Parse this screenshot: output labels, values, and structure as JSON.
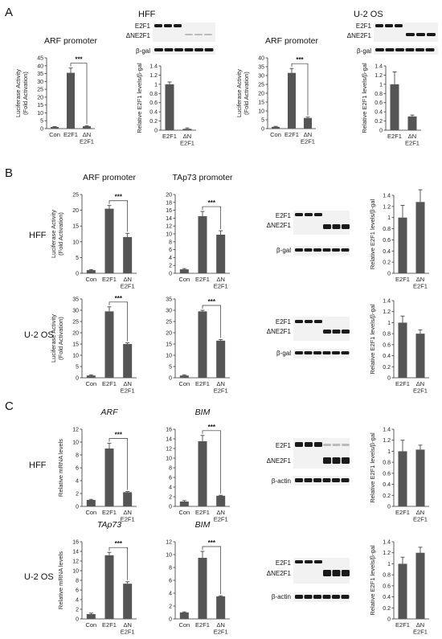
{
  "panels": [
    "A",
    "B",
    "C"
  ],
  "rows": {
    "HFF": "HFF",
    "U2OS": "U-2 OS"
  },
  "blot_labels": {
    "e2f1": "E2F1",
    "dne2f1": "ΔNE2F1",
    "bgal": "β-gal",
    "bactin": "β-actin"
  },
  "significance": "***",
  "chart_data": [
    {
      "id": "A-HFF-ARF-luc",
      "type": "bar",
      "title": "ARF promoter",
      "ylabel_lines": [
        "Luciferase Activity",
        "(Fold Activation)"
      ],
      "categories": [
        [
          "Con"
        ],
        [
          "E2F1"
        ],
        [
          "ΔN",
          "E2F1"
        ]
      ],
      "values": [
        1,
        35.5,
        1.5
      ],
      "errors": [
        0.3,
        3,
        0.4
      ],
      "ylim": [
        0,
        45
      ],
      "yticks": [
        "0",
        "5",
        "10",
        "15",
        "20",
        "25",
        "30",
        "35",
        "40",
        "45"
      ]
    },
    {
      "id": "A-HFF-ratio",
      "type": "bar",
      "ylabel_lines": [
        "Relative E2F1 levels/β-gal"
      ],
      "categories": [
        [
          "E2F1"
        ],
        [
          "ΔN",
          "E2F1"
        ]
      ],
      "values": [
        1.0,
        0.03
      ],
      "errors": [
        0.05,
        0.02
      ],
      "ylim": [
        0,
        1.4
      ],
      "yticks": [
        "0",
        "0.2",
        "0.4",
        "0.6",
        "0.8",
        "1",
        "1.2",
        "1.4"
      ]
    },
    {
      "id": "A-U2OS-ARF-luc",
      "type": "bar",
      "title": "ARF promoter",
      "ylabel_lines": [
        "Luciferase Activity",
        "(Fold Activation)"
      ],
      "categories": [
        [
          "Con"
        ],
        [
          "E2F1"
        ],
        [
          "ΔN",
          "E2F1"
        ]
      ],
      "values": [
        1,
        31.5,
        6
      ],
      "errors": [
        0.3,
        2.5,
        0.5
      ],
      "ylim": [
        0,
        40
      ],
      "yticks": [
        "0",
        "5",
        "10",
        "15",
        "20",
        "25",
        "30",
        "35",
        "40"
      ]
    },
    {
      "id": "A-U2OS-ratio",
      "type": "bar",
      "ylabel_lines": [
        "Relative E2F1 levels/β-gal"
      ],
      "categories": [
        [
          "E2F1"
        ],
        [
          "ΔN",
          "E2F1"
        ]
      ],
      "values": [
        1.0,
        0.3
      ],
      "errors": [
        0.27,
        0.03
      ],
      "ylim": [
        0,
        1.4
      ],
      "yticks": [
        "0",
        "0.2",
        "0.4",
        "0.6",
        "0.8",
        "1",
        "1.2",
        "1.4"
      ]
    },
    {
      "id": "B-HFF-ARF-luc",
      "type": "bar",
      "title": "ARF promoter",
      "ylabel_lines": [
        "Luciferase Activity",
        "(Fold Activation)"
      ],
      "categories": [
        [
          "Con"
        ],
        [
          "E2F1"
        ],
        [
          "ΔN",
          "E2F1"
        ]
      ],
      "values": [
        1,
        20.5,
        11.5
      ],
      "errors": [
        0.2,
        1,
        1.2
      ],
      "ylim": [
        0,
        25
      ],
      "yticks": [
        "0",
        "5",
        "10",
        "15",
        "20",
        "25"
      ]
    },
    {
      "id": "B-HFF-TAp73-luc",
      "type": "bar",
      "title": "TAp73 promoter",
      "categories": [
        [
          "Con"
        ],
        [
          "E2F1"
        ],
        [
          "ΔN",
          "E2F1"
        ]
      ],
      "values": [
        1,
        14.5,
        9.8
      ],
      "errors": [
        0.2,
        1.2,
        1
      ],
      "ylim": [
        0,
        20
      ],
      "yticks": [
        "0",
        "2",
        "4",
        "6",
        "8",
        "10",
        "12",
        "14",
        "16",
        "18",
        "20"
      ]
    },
    {
      "id": "B-HFF-ratio",
      "type": "bar",
      "ylabel_lines": [
        "Relative E2F1 levels/β-gal"
      ],
      "categories": [
        [
          "E2F1"
        ],
        [
          "ΔN",
          "E2F1"
        ]
      ],
      "values": [
        1.0,
        1.28
      ],
      "errors": [
        0.22,
        0.22
      ],
      "ylim": [
        0,
        1.4
      ],
      "yticks": [
        "0",
        "0.2",
        "0.4",
        "0.6",
        "0.8",
        "1",
        "1.2",
        "1.4"
      ]
    },
    {
      "id": "B-U2OS-ARF-luc",
      "type": "bar",
      "ylabel_lines": [
        "Luciferase Activity",
        "(Fold Activation)"
      ],
      "categories": [
        [
          "Con"
        ],
        [
          "E2F1"
        ],
        [
          "ΔN",
          "E2F1"
        ]
      ],
      "values": [
        1,
        29.5,
        15
      ],
      "errors": [
        0.3,
        2,
        0.5
      ],
      "ylim": [
        0,
        35
      ],
      "yticks": [
        "0",
        "5",
        "10",
        "15",
        "20",
        "25",
        "30",
        "35"
      ]
    },
    {
      "id": "B-U2OS-TAp73-luc",
      "type": "bar",
      "categories": [
        [
          "Con"
        ],
        [
          "E2F1"
        ],
        [
          "ΔN",
          "E2F1"
        ]
      ],
      "values": [
        1,
        29.5,
        16.5
      ],
      "errors": [
        0.3,
        0.5,
        0.5
      ],
      "ylim": [
        0,
        35
      ],
      "yticks": [
        "0",
        "5",
        "10",
        "15",
        "20",
        "25",
        "30",
        "35"
      ]
    },
    {
      "id": "B-U2OS-ratio",
      "type": "bar",
      "ylabel_lines": [
        "Relative E2F1 levels/β-gal"
      ],
      "categories": [
        [
          "E2F1"
        ],
        [
          "ΔN",
          "E2F1"
        ]
      ],
      "values": [
        1.0,
        0.8
      ],
      "errors": [
        0.12,
        0.07
      ],
      "ylim": [
        0,
        1.4
      ],
      "yticks": [
        "0",
        "0.2",
        "0.4",
        "0.6",
        "0.8",
        "1",
        "1.2",
        "1.4"
      ]
    },
    {
      "id": "C-HFF-ARF-mrna",
      "type": "bar",
      "title": "ARF",
      "title_italic": true,
      "ylabel_lines": [
        "Relative mRNA levels"
      ],
      "categories": [
        [
          "Con"
        ],
        [
          "E2F1"
        ],
        [
          "ΔN",
          "E2F1"
        ]
      ],
      "values": [
        1,
        9,
        2.2
      ],
      "errors": [
        0.1,
        0.8,
        0.1
      ],
      "ylim": [
        0,
        12
      ],
      "yticks": [
        "0",
        "2",
        "4",
        "6",
        "8",
        "10",
        "12"
      ]
    },
    {
      "id": "C-HFF-BIM-mrna",
      "type": "bar",
      "title": "BIM",
      "title_italic": true,
      "categories": [
        [
          "Con"
        ],
        [
          "E2F1"
        ],
        [
          "ΔN",
          "E2F1"
        ]
      ],
      "values": [
        1,
        13.5,
        2.2
      ],
      "errors": [
        0.2,
        1.2,
        0.1
      ],
      "ylim": [
        0,
        16
      ],
      "yticks": [
        "0",
        "2",
        "4",
        "6",
        "8",
        "10",
        "12",
        "14",
        "16"
      ]
    },
    {
      "id": "C-HFF-ratio",
      "type": "bar",
      "ylabel_lines": [
        "Relative E2F1 levels/β-gal"
      ],
      "categories": [
        [
          "E2F1"
        ],
        [
          "ΔN",
          "E2F1"
        ]
      ],
      "values": [
        1.0,
        1.03
      ],
      "errors": [
        0.2,
        0.08
      ],
      "ylim": [
        0,
        1.4
      ],
      "yticks": [
        "0",
        "0.2",
        "0.4",
        "0.6",
        "0.8",
        "1",
        "1.2",
        "1.4"
      ]
    },
    {
      "id": "C-U2OS-TAp73-mrna",
      "type": "bar",
      "title": "TAp73",
      "title_italic": true,
      "ylabel_lines": [
        "Relative mRNA levels"
      ],
      "categories": [
        [
          "Con"
        ],
        [
          "E2F1"
        ],
        [
          "ΔN",
          "E2F1"
        ]
      ],
      "values": [
        1,
        13.2,
        7.3
      ],
      "errors": [
        0.2,
        0.6,
        0.4
      ],
      "ylim": [
        0,
        16
      ],
      "yticks": [
        "0",
        "2",
        "4",
        "6",
        "8",
        "10",
        "12",
        "14",
        "16"
      ]
    },
    {
      "id": "C-U2OS-BIM-mrna",
      "type": "bar",
      "title": "BIM",
      "title_italic": true,
      "categories": [
        [
          "Con"
        ],
        [
          "E2F1"
        ],
        [
          "ΔN",
          "E2F1"
        ]
      ],
      "values": [
        1,
        9.5,
        3.5
      ],
      "errors": [
        0.1,
        1,
        0.1
      ],
      "ylim": [
        0,
        12
      ],
      "yticks": [
        "0",
        "2",
        "4",
        "6",
        "8",
        "10",
        "12"
      ]
    },
    {
      "id": "C-U2OS-ratio",
      "type": "bar",
      "ylabel_lines": [
        "Relative E2F1 levels/β-gal"
      ],
      "categories": [
        [
          "E2F1"
        ],
        [
          "ΔN",
          "E2F1"
        ]
      ],
      "values": [
        1.0,
        1.2
      ],
      "errors": [
        0.12,
        0.1
      ],
      "ylim": [
        0,
        1.4
      ],
      "yticks": [
        "0",
        "0.2",
        "0.4",
        "0.6",
        "0.8",
        "1",
        "1.2",
        "1.4"
      ]
    }
  ]
}
